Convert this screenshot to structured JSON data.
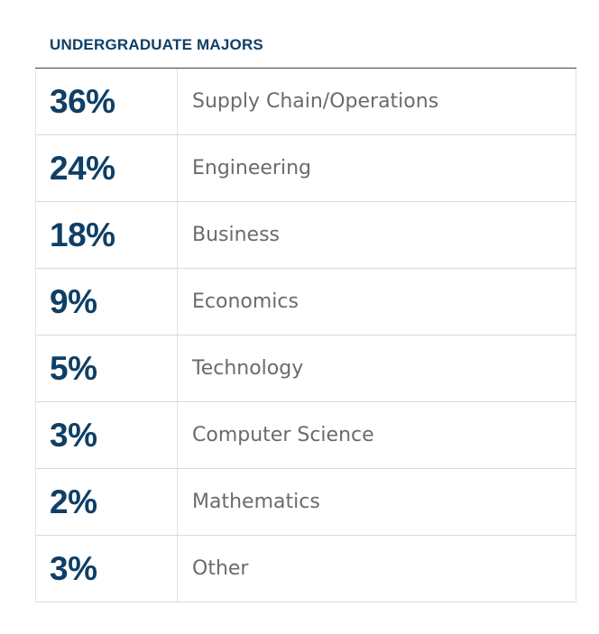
{
  "section": {
    "title": "UNDERGRADUATE MAJORS"
  },
  "majors": [
    {
      "percent": "36%",
      "name": "Supply Chain/Operations"
    },
    {
      "percent": "24%",
      "name": "Engineering"
    },
    {
      "percent": "18%",
      "name": "Business"
    },
    {
      "percent": "9%",
      "name": "Economics"
    },
    {
      "percent": "5%",
      "name": "Technology"
    },
    {
      "percent": "3%",
      "name": "Computer Science"
    },
    {
      "percent": "2%",
      "name": "Mathematics"
    },
    {
      "percent": "3%",
      "name": "Other"
    }
  ],
  "colors": {
    "accent": "#0f3f66",
    "label_text": "#6b6b6b",
    "rule": "#444444",
    "divider": "#d9d9d9"
  }
}
